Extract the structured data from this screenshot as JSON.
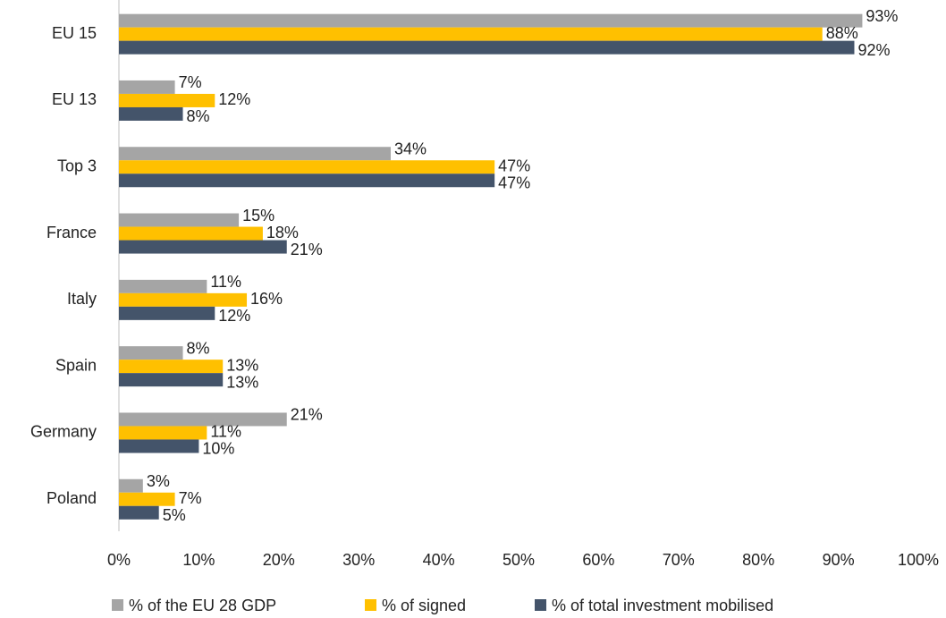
{
  "chart_data": {
    "type": "hbar",
    "categories": [
      "EU 15",
      "EU 13",
      "Top 3",
      "France",
      "Italy",
      "Spain",
      "Germany",
      "Poland"
    ],
    "series": [
      {
        "name": "% of the EU 28 GDP",
        "color": "#a5a5a5",
        "values": [
          93,
          7,
          34,
          15,
          11,
          8,
          21,
          3
        ],
        "value_labels": [
          "93%",
          "7%",
          "34%",
          "15%",
          "11%",
          "8%",
          "21%",
          "3%"
        ]
      },
      {
        "name": "% of signed",
        "color": "#ffc000",
        "values": [
          88,
          12,
          47,
          18,
          16,
          13,
          11,
          7
        ],
        "value_labels": [
          "88%",
          "12%",
          "47%",
          "18%",
          "16%",
          "13%",
          "11%",
          "7%"
        ]
      },
      {
        "name": "% of total investment mobilised",
        "color": "#44546a",
        "values": [
          92,
          8,
          47,
          21,
          12,
          13,
          10,
          5
        ],
        "value_labels": [
          "92%",
          "8%",
          "47%",
          "21%",
          "12%",
          "13%",
          "10%",
          "5%"
        ]
      }
    ],
    "xlim": [
      0,
      100
    ],
    "xticks": [
      {
        "value": 0,
        "label": "0%"
      },
      {
        "value": 10,
        "label": "10%"
      },
      {
        "value": 20,
        "label": "20%"
      },
      {
        "value": 30,
        "label": "30%"
      },
      {
        "value": 40,
        "label": "40%"
      },
      {
        "value": 50,
        "label": "50%"
      },
      {
        "value": 60,
        "label": "60%"
      },
      {
        "value": 70,
        "label": "70%"
      },
      {
        "value": 80,
        "label": "80%"
      },
      {
        "value": 90,
        "label": "90%"
      },
      {
        "value": 100,
        "label": "100%"
      }
    ],
    "grid": false,
    "legend": "bottom"
  }
}
